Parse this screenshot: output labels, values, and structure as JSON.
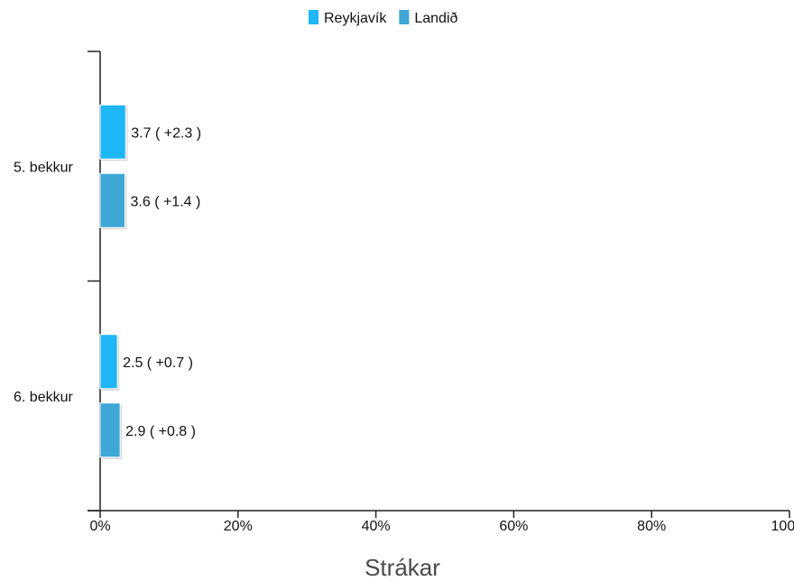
{
  "chart_data": {
    "type": "bar",
    "orientation": "horizontal",
    "xlabel": "Strákar",
    "ylabel": "",
    "xlim": [
      0,
      100
    ],
    "x_ticks": [
      "0%",
      "20%",
      "40%",
      "60%",
      "80%",
      "100%"
    ],
    "categories": [
      "5. bekkur",
      "6. bekkur"
    ],
    "legend_position": "top-center",
    "grid": false,
    "series": [
      {
        "name": "Reykjavík",
        "color": "#1fb6f5",
        "values": [
          3.7,
          2.5
        ],
        "labels": [
          "3.7 ( +2.3 )",
          "2.5 ( +0.7 )"
        ]
      },
      {
        "name": "Landið",
        "color": "#3ea7d6",
        "values": [
          3.6,
          2.9
        ],
        "labels": [
          "3.6 ( +1.4 )",
          "2.9 ( +0.8 )"
        ]
      }
    ]
  }
}
